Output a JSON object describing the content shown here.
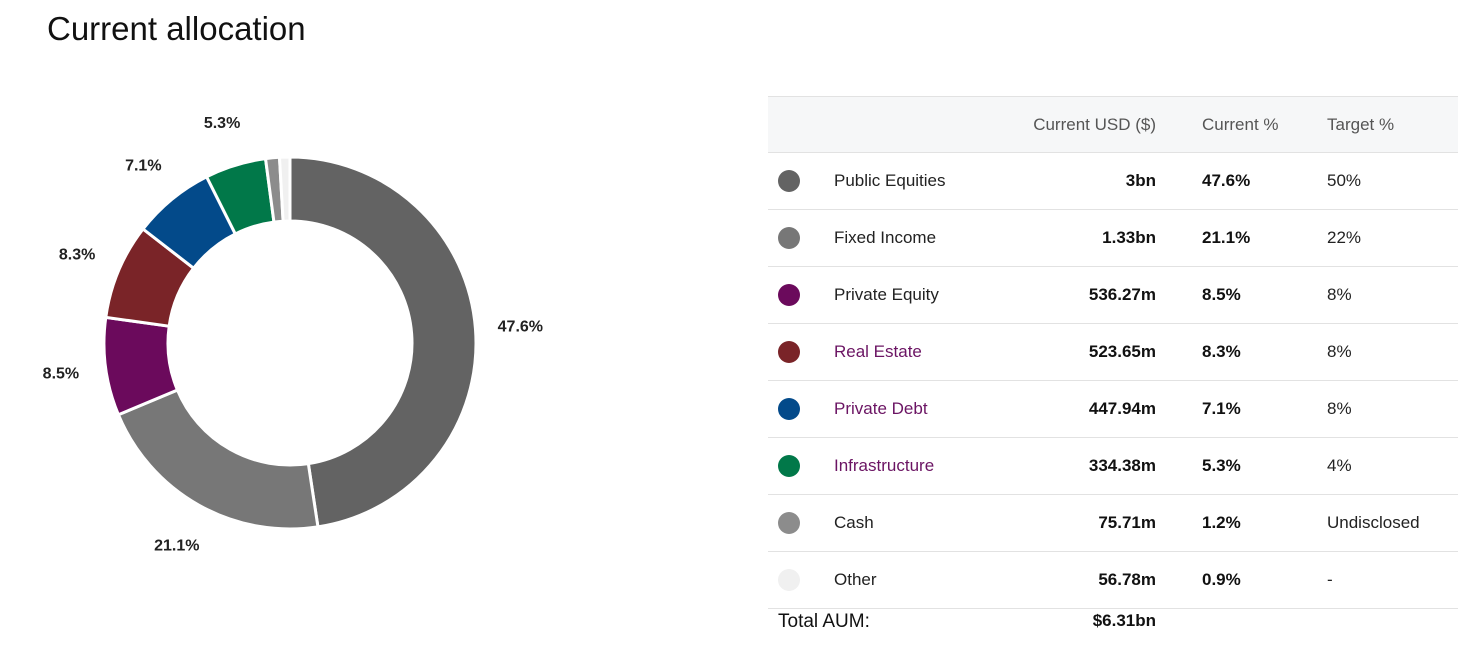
{
  "page": {
    "title": "Current allocation"
  },
  "table": {
    "headers": {
      "usd": "Current USD ($)",
      "current": "Current %",
      "target": "Target %"
    },
    "rows": [
      {
        "name": "Public Equities",
        "usd": "3bn",
        "current": "47.6%",
        "target": "50%",
        "color": "#636363",
        "link": false
      },
      {
        "name": "Fixed Income",
        "usd": "1.33bn",
        "current": "21.1%",
        "target": "22%",
        "color": "#777777",
        "link": false
      },
      {
        "name": "Private Equity",
        "usd": "536.27m",
        "current": "8.5%",
        "target": "8%",
        "color": "#6b0a5c",
        "link": false
      },
      {
        "name": "Real Estate",
        "usd": "523.65m",
        "current": "8.3%",
        "target": "8%",
        "color": "#7a2428",
        "link": true
      },
      {
        "name": "Private Debt",
        "usd": "447.94m",
        "current": "7.1%",
        "target": "8%",
        "color": "#034a8a",
        "link": true
      },
      {
        "name": "Infrastructure",
        "usd": "334.38m",
        "current": "5.3%",
        "target": "4%",
        "color": "#017849",
        "link": true
      },
      {
        "name": "Cash",
        "usd": "75.71m",
        "current": "1.2%",
        "target": "Undisclosed",
        "color": "#8c8c8c",
        "link": false
      },
      {
        "name": "Other",
        "usd": "56.78m",
        "current": "0.9%",
        "target": "-",
        "color": "#f0f0f0",
        "link": false
      }
    ],
    "total_label": "Total AUM:",
    "total_value": "$6.31bn"
  },
  "chart_data": {
    "type": "pie",
    "categories": [
      "Public Equities",
      "Fixed Income",
      "Private Equity",
      "Real Estate",
      "Private Debt",
      "Infrastructure",
      "Cash",
      "Other"
    ],
    "values": [
      47.6,
      21.1,
      8.5,
      8.3,
      7.1,
      5.3,
      1.2,
      0.9
    ],
    "labels": [
      "47.6%",
      "21.1%",
      "8.5%",
      "8.3%",
      "7.1%",
      "5.3%",
      "",
      ""
    ],
    "colors": [
      "#636363",
      "#777777",
      "#6b0a5c",
      "#7a2428",
      "#034a8a",
      "#017849",
      "#8c8c8c",
      "#f0f0f0"
    ],
    "donut": true
  }
}
